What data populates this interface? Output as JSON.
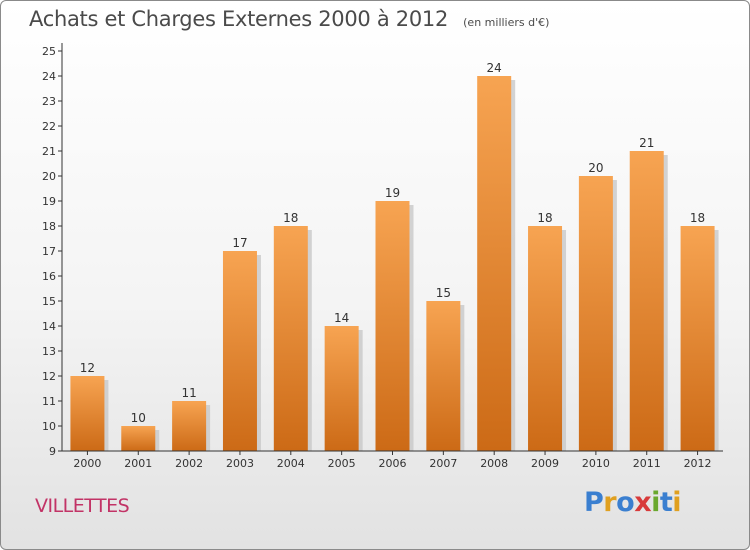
{
  "header": {
    "title": "Achats et Charges Externes 2000 à 2012",
    "subtitle": "(en milliers d'€)"
  },
  "footer": {
    "place": "VILLETTES",
    "logo_text": "Proxiti",
    "logo_letters": [
      {
        "char": "P",
        "color": "#3a7fd0"
      },
      {
        "char": "r",
        "color": "#e0a020"
      },
      {
        "char": "o",
        "color": "#3a7fd0"
      },
      {
        "char": "x",
        "color": "#d83a3a"
      },
      {
        "char": "i",
        "color": "#6aa82e"
      },
      {
        "char": "t",
        "color": "#3a7fd0"
      },
      {
        "char": "i",
        "color": "#e0a020"
      }
    ]
  },
  "chart_data": {
    "type": "bar",
    "categories": [
      "2000",
      "2001",
      "2002",
      "2003",
      "2004",
      "2005",
      "2006",
      "2007",
      "2008",
      "2009",
      "2010",
      "2011",
      "2012"
    ],
    "values": [
      12,
      10,
      11,
      17,
      18,
      14,
      19,
      15,
      24,
      18,
      20,
      21,
      18
    ],
    "ylim": [
      9,
      25
    ],
    "yticks": [
      9,
      10,
      11,
      12,
      13,
      14,
      15,
      16,
      17,
      18,
      19,
      20,
      21,
      22,
      23,
      24,
      25
    ],
    "grid": false,
    "data_labels": true,
    "colors": {
      "bar_light": "#f7a452",
      "bar_dark": "#cc6a16",
      "shadow": "#c8c8c8",
      "axis": "#333333",
      "text": "#333333"
    }
  }
}
